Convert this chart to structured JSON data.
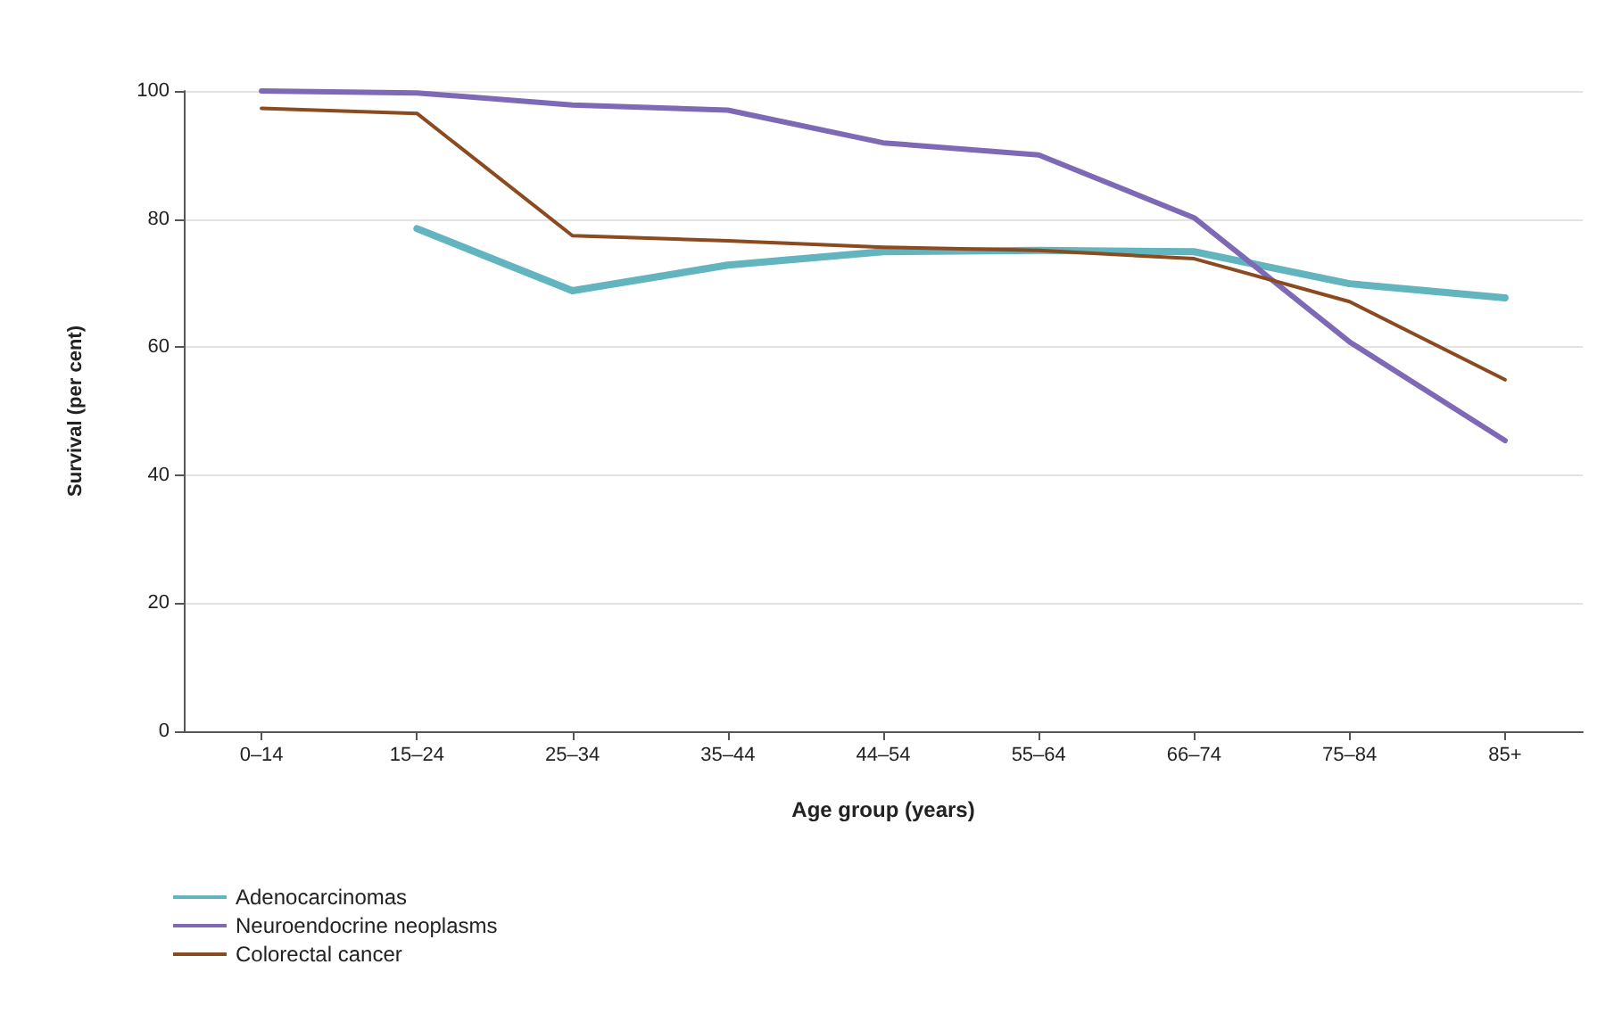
{
  "chart_data": {
    "type": "line",
    "xlabel": "Age group (years)",
    "ylabel": "Survival (per cent)",
    "categories": [
      "0–14",
      "15–24",
      "25–34",
      "35–44",
      "44–54",
      "55–64",
      "66–74",
      "75–84",
      "85+"
    ],
    "series": [
      {
        "name": "Adenocarcinomas",
        "color": "#62b4bf",
        "values": [
          null,
          78.5,
          68.8,
          72.8,
          74.9,
          75.1,
          74.9,
          69.9,
          67.7
        ]
      },
      {
        "name": "Neuroendocrine neoplasms",
        "color": "#7d69b6",
        "values": [
          100,
          99.7,
          97.8,
          97,
          91.9,
          90,
          80.2,
          60.8,
          45.4
        ]
      },
      {
        "name": "Colorectal cancer",
        "color": "#8b4a1f",
        "values": [
          97.3,
          96.5,
          77.4,
          76.6,
          75.6,
          75.1,
          73.8,
          67.1,
          54.9
        ]
      }
    ],
    "ylim": [
      0,
      100
    ],
    "yticks": [
      0,
      20,
      40,
      60,
      80,
      100
    ],
    "grid": "y",
    "legend": "bottom left",
    "marker": "none",
    "line_style": "solid"
  }
}
